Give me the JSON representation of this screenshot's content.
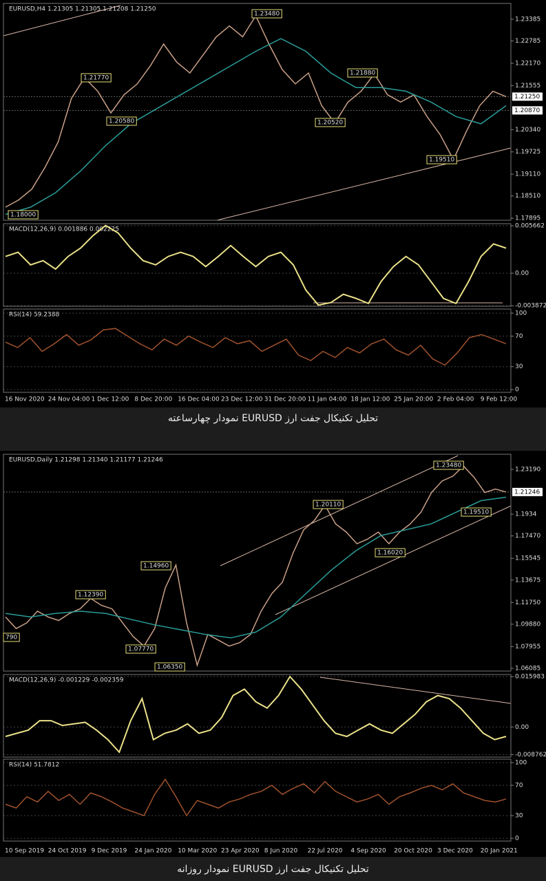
{
  "chart_data": [
    {
      "type": "line",
      "title": "EURUSD,H4  1.21305 1.21305 1.21208 1.21250",
      "series": [
        {
          "color": "#c9a088",
          "values": [
            1.182,
            1.184,
            1.187,
            1.193,
            1.2,
            1.212,
            1.2177,
            1.214,
            1.208,
            1.213,
            1.216,
            1.221,
            1.227,
            1.222,
            1.219,
            1.224,
            1.229,
            1.232,
            1.229,
            1.2348,
            1.227,
            1.22,
            1.216,
            1.219,
            1.21,
            1.2052,
            1.211,
            1.214,
            1.2188,
            1.213,
            1.211,
            1.213,
            1.207,
            1.202,
            1.1951,
            1.203,
            1.21,
            1.214,
            1.2125
          ]
        },
        {
          "color": "#2a9d9a",
          "values": [
            1.18,
            1.182,
            1.186,
            1.192,
            1.199,
            1.205,
            1.209,
            1.213,
            1.217,
            1.221,
            1.225,
            1.2285,
            1.225,
            1.219,
            1.215,
            1.215,
            1.214,
            1.211,
            1.207,
            1.205,
            1.21
          ]
        }
      ],
      "ylim": [
        1.1784,
        1.2382
      ],
      "yticks": [
        1.23385,
        1.22785,
        {
          "value": 1.2217,
          "label": "1.22170"
        },
        1.21555,
        {
          "value": 1.2034,
          "label": "1.20340"
        },
        1.19725,
        {
          "value": 1.1911,
          "label": "1.19110"
        },
        {
          "value": 1.1851,
          "label": "1.18510"
        },
        1.17895
      ],
      "current_labels": [
        {
          "value": 1.2125,
          "label": "1.21250"
        },
        {
          "value": 1.2087,
          "label": "1.20870"
        }
      ],
      "price_labels": [
        "1.23480",
        "1.21770",
        "1.20580",
        "1.21880",
        "1.20520",
        "1.19510",
        "1.18000"
      ]
    },
    {
      "type": "line",
      "title": "MACD(12,26,9) 0.001886 0.002225",
      "series": [
        {
          "color": "#ece28a",
          "values": [
            0.002,
            0.0025,
            0.001,
            0.0015,
            0.0005,
            0.002,
            0.003,
            0.0045,
            0.0057,
            0.0048,
            0.003,
            0.0015,
            0.001,
            0.002,
            0.0025,
            0.002,
            0.0008,
            0.002,
            0.0033,
            0.002,
            0.0008,
            0.002,
            0.0025,
            0.001,
            -0.002,
            -0.0038,
            -0.0035,
            -0.0025,
            -0.003,
            -0.0036,
            -0.001,
            0.0008,
            0.002,
            0.001,
            -0.001,
            -0.003,
            -0.0036,
            -0.001,
            0.002,
            0.0035,
            0.003
          ]
        }
      ],
      "ylim": [
        -0.00394,
        0.00591
      ],
      "yticks": [
        0.005662,
        {
          "value": 0,
          "label": "0.00"
        },
        -0.003872
      ]
    },
    {
      "type": "line",
      "title": "RSI(14) 59.2388",
      "series": [
        {
          "color": "#a0522d",
          "values": [
            62,
            55,
            68,
            50,
            60,
            72,
            58,
            65,
            78,
            80,
            70,
            60,
            52,
            66,
            58,
            70,
            62,
            55,
            68,
            60,
            64,
            50,
            58,
            66,
            45,
            38,
            50,
            42,
            55,
            48,
            60,
            66,
            52,
            45,
            58,
            40,
            32,
            48,
            68,
            72,
            66,
            60
          ]
        }
      ],
      "ylim": [
        -3.6,
        105.4
      ],
      "yticks": [
        100,
        70,
        30,
        0
      ],
      "date_labels": [
        "16 Nov 2020",
        "24 Nov 04:00",
        "1 Dec 12:00",
        "8 Dec 20:00",
        "16 Dec 04:00",
        "23 Dec 12:00",
        "31 Dec 20:00",
        "11 Jan 04:00",
        "18 Jan 12:00",
        "25 Jan 20:00",
        "2 Feb 04:00",
        "9 Feb 12:00"
      ]
    },
    {
      "type": "line",
      "title": "EURUSD,Daily  1.21298 1.21340 1.21177 1.21246",
      "series": [
        {
          "color": "#c9a088",
          "values": [
            1.105,
            1.095,
            1.1,
            1.11,
            1.105,
            1.102,
            1.108,
            1.112,
            1.121,
            1.115,
            1.112,
            1.1,
            1.088,
            1.08,
            1.095,
            1.13,
            1.1496,
            1.1,
            1.0635,
            1.09,
            1.085,
            1.08,
            1.083,
            1.09,
            1.11,
            1.125,
            1.135,
            1.16,
            1.18,
            1.188,
            1.2011,
            1.185,
            1.178,
            1.168,
            1.172,
            1.178,
            1.168,
            1.178,
            1.185,
            1.195,
            1.212,
            1.222,
            1.226,
            1.2348,
            1.225,
            1.212,
            1.215,
            1.2125
          ]
        },
        {
          "color": "#2a9d9a",
          "values": [
            1.108,
            1.105,
            1.108,
            1.11,
            1.108,
            1.103,
            1.098,
            1.094,
            1.09,
            1.087,
            1.092,
            1.105,
            1.125,
            1.145,
            1.162,
            1.175,
            1.18,
            1.185,
            1.195,
            1.205,
            1.208
          ]
        }
      ],
      "ylim": [
        1.0585,
        1.2449
      ],
      "yticks": [
        {
          "value": 1.2319,
          "label": "1.23190"
        },
        1.1934,
        {
          "value": 1.1747,
          "label": "1.17470"
        },
        1.15545,
        1.13675,
        {
          "value": 1.1175,
          "label": "1.11750"
        },
        {
          "value": 1.0988,
          "label": "1.09880"
        },
        1.07955,
        1.06085
      ],
      "current_labels": [
        {
          "value": 1.21246,
          "label": "1.21246"
        }
      ],
      "price_labels": [
        "790",
        "1.12390",
        "1.07770",
        "1.14960",
        "1.06350",
        "1.20110",
        "1.16020",
        "1.23480",
        "1.19510"
      ]
    },
    {
      "type": "line",
      "title": "MACD(12,26,9) -0.001229 -0.002359",
      "series": [
        {
          "color": "#ece28a",
          "values": [
            -0.003,
            -0.002,
            -0.001,
            0.002,
            0.002,
            0.0005,
            0.001,
            0.0015,
            -0.001,
            -0.004,
            -0.008,
            0.002,
            0.009,
            -0.004,
            -0.002,
            -0.001,
            0.001,
            -0.002,
            -0.001,
            0.003,
            0.01,
            0.012,
            0.008,
            0.006,
            0.01,
            0.016,
            0.012,
            0.007,
            0.002,
            -0.002,
            -0.003,
            -0.001,
            0.001,
            -0.001,
            -0.002,
            0.001,
            0.004,
            0.008,
            0.01,
            0.009,
            0.006,
            0.002,
            -0.002,
            -0.004,
            -0.003
          ]
        }
      ],
      "ylim": [
        -0.00955,
        0.01665
      ],
      "yticks": [
        0.015983,
        {
          "value": 0,
          "label": "0.00"
        },
        -0.008762
      ]
    },
    {
      "type": "line",
      "title": "RSI(14) 51.7812",
      "series": [
        {
          "color": "#a0522d",
          "values": [
            45,
            40,
            55,
            48,
            62,
            50,
            58,
            45,
            60,
            55,
            48,
            40,
            35,
            30,
            58,
            78,
            55,
            30,
            50,
            45,
            40,
            48,
            52,
            58,
            62,
            70,
            58,
            66,
            72,
            60,
            75,
            62,
            55,
            48,
            52,
            58,
            45,
            55,
            60,
            66,
            70,
            64,
            72,
            60,
            55,
            50,
            48,
            52
          ]
        }
      ],
      "ylim": [
        -3.6,
        104.5
      ],
      "yticks": [
        100,
        70,
        30,
        0
      ],
      "date_labels": [
        "10 Sep 2019",
        "24 Oct 2019",
        "9 Dec 2019",
        "24 Jan 2020",
        "10 Mar 2020",
        "23 Apr 2020",
        "8 Jun 2020",
        "22 Jul 2020",
        "4 Sep 2020",
        "20 Oct 2020",
        "3 Dec 2020",
        "20 Jan 2021"
      ]
    }
  ],
  "captions": [
    "تحلیل تکنیکال جفت ارز EURUSD نمودار چهارساعته",
    "تحلیل تکنیکال جفت ارز EURUSD نمودار روزانه"
  ]
}
